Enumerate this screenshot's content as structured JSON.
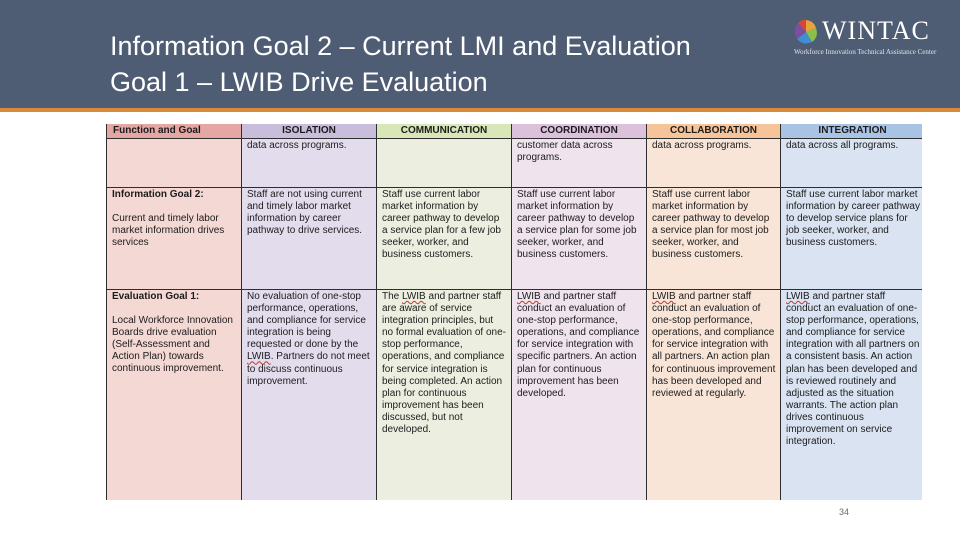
{
  "slide": {
    "title_line1": "Information Goal 2 – Current LMI and Evaluation",
    "title_line2": "Goal 1 – LWIB Drive Evaluation",
    "page_number": "34"
  },
  "logo": {
    "name": "WINTAC",
    "tagline": "Workforce Innovation Technical Assistance Center"
  },
  "colors": {
    "header_bg": "#4f5d74",
    "accent_line": "#d98b3a"
  },
  "table": {
    "headers": [
      "Function and Goal",
      "ISOLATION",
      "COMMUNICATION",
      "COORDINATION",
      "COLLABORATION",
      "INTEGRATION"
    ],
    "row_continued": [
      "",
      "data across programs.",
      "",
      "customer data across programs.",
      "data across programs.",
      "data across all programs."
    ],
    "row_info_goal": {
      "label_title": "Information Goal 2:",
      "label_text": "Current and timely labor market information drives services",
      "cells": [
        "Staff are not using current and timely labor market information by career pathway to drive services.",
        "Staff use current labor market information by career pathway to develop a service plan for a few job seeker, worker, and business customers.",
        "Staff use current labor market information by career pathway to develop a service plan for some job seeker, worker, and business customers.",
        "Staff use current labor market information by career pathway to develop a service plan for most job seeker, worker, and business customers.",
        "Staff use current labor market information by career pathway to develop service plans for job seeker, worker, and business customers."
      ]
    },
    "row_eval_goal": {
      "label_title": "Evaluation Goal 1:",
      "label_text": "Local Workforce Innovation Boards drive evaluation (Self-Assessment and Action Plan) towards continuous improvement.",
      "isolation_pre": "No evaluation of one-stop performance, operations, and compliance for service integration is being requested or done by the ",
      "isolation_lwib": "LWIB",
      "isolation_post": ". Partners do not meet to discuss continuous improvement.",
      "comm_pre": "The ",
      "comm_lwib": "LWIB",
      "comm_post": " and partner staff are aware of service integration principles, but no formal evaluation of one-stop performance, operations, and compliance for service integration is being completed. An action plan for continuous improvement has been discussed, but not developed.",
      "coord_lwib": "LWIB",
      "coord_post": " and partner staff conduct an evaluation of one-stop performance, operations, and compliance for service integration with specific partners. An action plan for continuous improvement has been developed.",
      "collab_lwib": "LWIB",
      "collab_post": " and partner staff conduct an evaluation of one-stop performance, operations, and compliance for service integration with all partners. An action plan for continuous improvement has been developed and reviewed at regularly.",
      "integ_lwib": "LWIB",
      "integ_post": " and partner staff conduct an evaluation of one-stop performance, operations, and compliance for service integration with all partners on a consistent basis. An action plan has been developed and is reviewed routinely and adjusted as the situation warrants. The action plan drives continuous improvement on service integration."
    }
  }
}
